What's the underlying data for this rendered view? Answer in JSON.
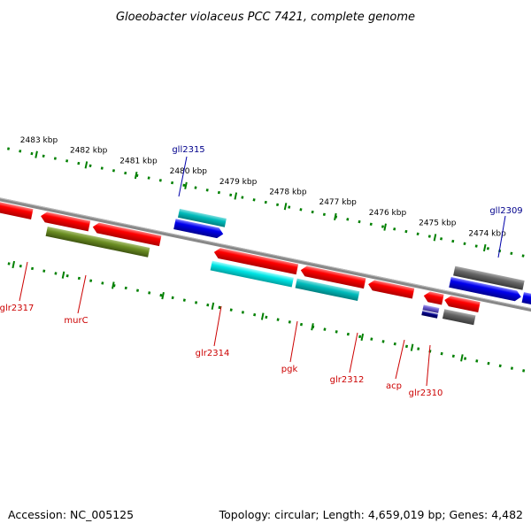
{
  "title": "Gloeobacter violaceus PCC 7421, complete genome",
  "footer": {
    "accession": "Accession: NC_005125",
    "topology": "Topology: circular; Length: 4,659,019 bp; Genes: 4,482"
  },
  "kbp_labels": [
    "2483 kbp",
    "2482 kbp",
    "2481 kbp",
    "2480 kbp",
    "2479 kbp",
    "2478 kbp",
    "2477 kbp",
    "2476 kbp",
    "2475 kbp",
    "2474 kbp"
  ],
  "forward_genes": [
    {
      "name": "gll2315",
      "color": "#00008b"
    },
    {
      "name": "gll2309",
      "color": "#00008b"
    }
  ],
  "reverse_genes": [
    {
      "name": "glr2317",
      "color": "#cc0000"
    },
    {
      "name": "murC",
      "color": "#cc0000"
    },
    {
      "name": "glr2314",
      "color": "#cc0000"
    },
    {
      "name": "pgk",
      "color": "#cc0000"
    },
    {
      "name": "glr2312",
      "color": "#cc0000"
    },
    {
      "name": "acp",
      "color": "#cc0000"
    },
    {
      "name": "glr2310",
      "color": "#cc0000"
    }
  ],
  "colors": {
    "cds_reverse": "#ff0000",
    "cds_forward": "#0000ee",
    "rrna_reverse": "#00e5e5",
    "rrna_forward": "#00cccc",
    "gene_olive": "#6b8e23",
    "gene_gray": "#666666",
    "gene_purple": "#6a5acd",
    "tick_green": "#008000",
    "backbone": "#888888"
  }
}
